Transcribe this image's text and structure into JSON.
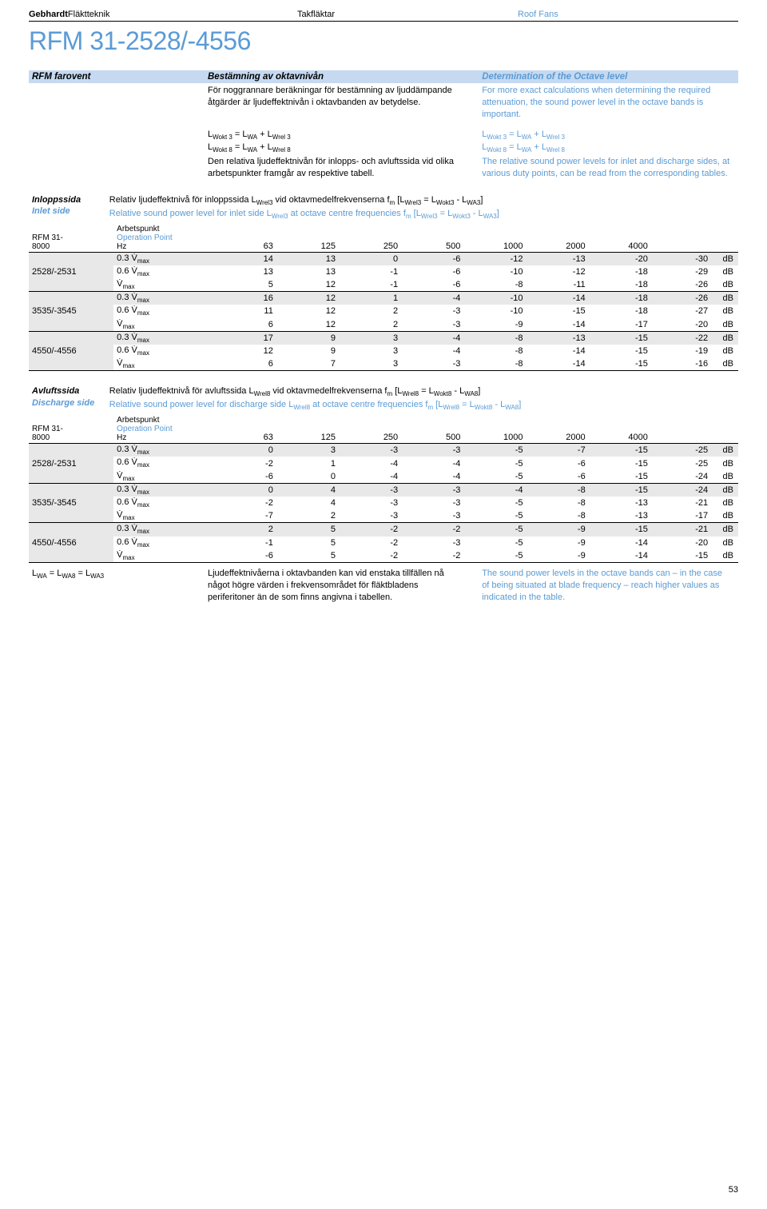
{
  "header": {
    "brand_bold": "Gebhardt",
    "brand_rest": "Fläktteknik",
    "category_sv": "Takfläktar",
    "category_en": "Roof Fans"
  },
  "product_title": "RFM 31-2528/-4556",
  "intro_bar": {
    "left": "RFM farovent",
    "mid": "Bestämning av oktavnivån",
    "right": "Determination of the Octave level"
  },
  "intro_desc": {
    "sv": "För noggrannare beräkningar för bestämning av ljuddämpande åtgärder är ljudeffektnivån i oktavbanden av betydelse.",
    "en": "For more exact calculations when determining the required attenuation, the sound power level in the octave bands is important."
  },
  "formulas": {
    "sv1": "L<sub>Wokt 3</sub> = L<sub>WA</sub> + L<sub>Wrel 3</sub>",
    "en1": "L<sub>Wokt 3</sub> = L<sub>WA</sub> + L<sub>Wrel 3</sub>",
    "sv2": "L<sub>Wokt 8</sub> = L<sub>WA</sub> + L<sub>Wrel 8</sub>",
    "en2": "L<sub>Wokt 8</sub> = L<sub>WA</sub> + L<sub>Wrel 8</sub>",
    "sv_note": "Den relativa ljudeffektnivån för inlopps- och avluftssida vid olika arbetspunkter framgår av respektive tabell.",
    "en_note": "The relative sound power levels for inlet and discharge sides, at various duty points, can be read from the corresponding tables."
  },
  "section_inlet": {
    "label_sv": "Inloppssida",
    "label_en": "Inlet side",
    "desc_sv": "Relativ ljudeffektnivå för inloppssida L<sub>Wrel3</sub> vid oktavmedelfrekvenserna f<sub>m</sub> [L<sub>Wrel3</sub> = L<sub>Wokt3</sub> - L<sub>WA3</sub>]",
    "desc_en": "Relative sound power level for inlet side L<sub>Wrel3</sub> at octave centre frequencies f<sub>m</sub> [L<sub>Wrel3</sub> = L<sub>Wokt3</sub> - L<sub>WA3</sub>]"
  },
  "section_discharge": {
    "label_sv": "Avluftssida",
    "label_en": "Discharge side",
    "desc_sv": "Relativ ljudeffektnivå för avluftssida L<sub>Wrel8</sub> vid oktavmedelfrekvenserna f<sub>m</sub> [L<sub>Wrel8</sub> = L<sub>Wokt8</sub> - L<sub>WA8</sub>]",
    "desc_en": "Relative sound power level for discharge side L<sub>Wrel8</sub> at octave centre frequencies f<sub>m</sub> [L<sub>Wrel8</sub> = L<sub>Wokt8</sub> - L<sub>WA8</sub>]"
  },
  "table_header": {
    "model": "RFM 31-",
    "op_sv": "Arbetspunkt",
    "op_en": "Operation Point",
    "op_hz": "Hz",
    "freqs": [
      "63",
      "125",
      "250",
      "500",
      "1000",
      "2000",
      "4000",
      "8000"
    ]
  },
  "op_labels": {
    "v03": "0.3 V̇<sub>max</sub>",
    "v06": "0.6 V̇<sub>max</sub>",
    "vmax": "V̇<sub>max</sub>"
  },
  "inlet_data": [
    {
      "model": "2528/-2531",
      "rows": [
        {
          "op": "v03",
          "vals": [
            14,
            13,
            0,
            -6,
            -12,
            -13,
            -20,
            -30
          ],
          "shade": true
        },
        {
          "op": "v06",
          "vals": [
            13,
            13,
            -1,
            -6,
            -10,
            -12,
            -18,
            -29
          ],
          "shade": false
        },
        {
          "op": "vmax",
          "vals": [
            5,
            12,
            -1,
            -6,
            -8,
            -11,
            -18,
            -26
          ],
          "shade": false
        }
      ]
    },
    {
      "model": "3535/-3545",
      "rows": [
        {
          "op": "v03",
          "vals": [
            16,
            12,
            1,
            -4,
            -10,
            -14,
            -18,
            -26
          ],
          "shade": true
        },
        {
          "op": "v06",
          "vals": [
            11,
            12,
            2,
            -3,
            -10,
            -15,
            -18,
            -27
          ],
          "shade": false
        },
        {
          "op": "vmax",
          "vals": [
            6,
            12,
            2,
            -3,
            -9,
            -14,
            -17,
            -20
          ],
          "shade": false
        }
      ]
    },
    {
      "model": "4550/-4556",
      "rows": [
        {
          "op": "v03",
          "vals": [
            17,
            9,
            3,
            -4,
            -8,
            -13,
            -15,
            -22
          ],
          "shade": true
        },
        {
          "op": "v06",
          "vals": [
            12,
            9,
            3,
            -4,
            -8,
            -14,
            -15,
            -19
          ],
          "shade": false
        },
        {
          "op": "vmax",
          "vals": [
            6,
            7,
            3,
            -3,
            -8,
            -14,
            -15,
            -16
          ],
          "shade": false
        }
      ]
    }
  ],
  "discharge_data": [
    {
      "model": "2528/-2531",
      "rows": [
        {
          "op": "v03",
          "vals": [
            0,
            3,
            -3,
            -3,
            -5,
            -7,
            -15,
            -25
          ],
          "shade": true
        },
        {
          "op": "v06",
          "vals": [
            -2,
            1,
            -4,
            -4,
            -5,
            -6,
            -15,
            -25
          ],
          "shade": false
        },
        {
          "op": "vmax",
          "vals": [
            -6,
            0,
            -4,
            -4,
            -5,
            -6,
            -15,
            -24
          ],
          "shade": false
        }
      ]
    },
    {
      "model": "3535/-3545",
      "rows": [
        {
          "op": "v03",
          "vals": [
            0,
            4,
            -3,
            -3,
            -4,
            -8,
            -15,
            -24
          ],
          "shade": true
        },
        {
          "op": "v06",
          "vals": [
            -2,
            4,
            -3,
            -3,
            -5,
            -8,
            -13,
            -21
          ],
          "shade": false
        },
        {
          "op": "vmax",
          "vals": [
            -7,
            2,
            -3,
            -3,
            -5,
            -8,
            -13,
            -17
          ],
          "shade": false
        }
      ]
    },
    {
      "model": "4550/-4556",
      "rows": [
        {
          "op": "v03",
          "vals": [
            2,
            5,
            -2,
            -2,
            -5,
            -9,
            -15,
            -21
          ],
          "shade": true
        },
        {
          "op": "v06",
          "vals": [
            -1,
            5,
            -2,
            -3,
            -5,
            -9,
            -14,
            -20
          ],
          "shade": false
        },
        {
          "op": "vmax",
          "vals": [
            -6,
            5,
            -2,
            -2,
            -5,
            -9,
            -14,
            -15
          ],
          "shade": false
        }
      ]
    }
  ],
  "footer": {
    "formula": "L<sub>WA</sub> = L<sub>WA8</sub> = L<sub>WA3</sub>",
    "sv": "Ljudeffektnivåerna i oktavbanden kan vid enstaka tillfällen nå något högre värden i frekvensområdet för fläktbladens periferitoner än de som finns angivna i tabellen.",
    "en": "The sound power levels in the octave bands can – in the case of being situated at blade frequency – reach higher values as indicated in the table."
  },
  "unit": "dB",
  "page_number": "53",
  "colors": {
    "accent": "#5b9bd5",
    "bar_bg": "#c5d9f1",
    "shade": "#e8e8e8"
  }
}
